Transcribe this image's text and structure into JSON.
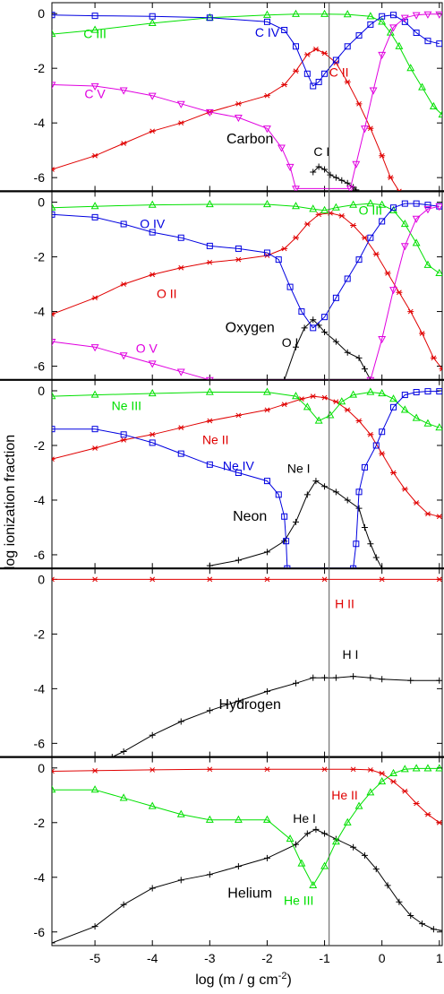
{
  "colors": {
    "I": "#000000",
    "II": "#e00000",
    "III": "#00e000",
    "IV": "#0000e0",
    "V": "#e000e0"
  },
  "xlabel_main": "log (m / g cm",
  "xlabel_sup": "-2",
  "xlabel_close": ")",
  "ylabel": "log   ionization fraction",
  "chart_data": [
    {
      "type": "line",
      "element": "Carbon",
      "xlim": [
        -5.75,
        1.05
      ],
      "ylim": [
        -6.5,
        0.4
      ],
      "xticks": [
        -5,
        -4,
        -3,
        -2,
        -1,
        0,
        1
      ],
      "yticks": [
        0,
        -2,
        -4,
        -6
      ],
      "vline_x": -0.92,
      "series": [
        {
          "name": "C I",
          "color_key": "I",
          "marker": "plus",
          "label_pos": [
            -1.05,
            -5.2
          ],
          "x": [
            -1.2,
            -1.1,
            -1.0,
            -0.9,
            -0.8,
            -0.7,
            -0.6,
            -0.5,
            -0.45
          ],
          "y": [
            -5.8,
            -5.6,
            -5.7,
            -5.9,
            -6.0,
            -6.1,
            -6.2,
            -6.35,
            -6.45
          ]
        },
        {
          "name": "C II",
          "color_key": "II",
          "marker": "star",
          "label_pos": [
            -0.75,
            -2.3
          ],
          "x": [
            -5.75,
            -5.0,
            -4.5,
            -4.0,
            -3.5,
            -3.0,
            -2.5,
            -2.0,
            -1.7,
            -1.5,
            -1.3,
            -1.15,
            -1.0,
            -0.8,
            -0.6,
            -0.4,
            -0.2,
            0.0,
            0.15,
            0.3
          ],
          "y": [
            -5.7,
            -5.2,
            -4.75,
            -4.3,
            -4.0,
            -3.6,
            -3.3,
            -3.0,
            -2.6,
            -2.1,
            -1.5,
            -1.3,
            -1.45,
            -1.8,
            -2.5,
            -3.3,
            -4.2,
            -5.2,
            -6.0,
            -6.5
          ]
        },
        {
          "name": "C III",
          "color_key": "III",
          "marker": "triangle",
          "label_pos": [
            -5.0,
            -0.9
          ],
          "x": [
            -5.75,
            -5.0,
            -4.0,
            -3.0,
            -2.0,
            -1.5,
            -1.0,
            -0.6,
            -0.2,
            0.0,
            0.15,
            0.3,
            0.5,
            0.7,
            0.9,
            1.05
          ],
          "y": [
            -0.75,
            -0.6,
            -0.35,
            -0.15,
            -0.05,
            -0.02,
            -0.02,
            -0.03,
            -0.1,
            -0.3,
            -0.7,
            -1.2,
            -2.0,
            -2.7,
            -3.4,
            -3.7
          ]
        },
        {
          "name": "C IV",
          "color_key": "IV",
          "marker": "square",
          "label_pos": [
            -2.0,
            -0.85
          ],
          "x": [
            -5.75,
            -5.0,
            -4.0,
            -3.0,
            -2.0,
            -1.7,
            -1.5,
            -1.3,
            -1.2,
            -1.1,
            -1.0,
            -0.8,
            -0.6,
            -0.4,
            -0.2,
            0.0,
            0.2,
            0.4,
            0.6,
            0.8,
            1.0
          ],
          "y": [
            -0.05,
            -0.08,
            -0.1,
            -0.15,
            -0.3,
            -0.6,
            -1.2,
            -2.2,
            -2.65,
            -2.5,
            -2.2,
            -1.7,
            -1.2,
            -0.8,
            -0.4,
            -0.1,
            -0.05,
            -0.3,
            -0.7,
            -1.0,
            -1.1
          ]
        },
        {
          "name": "C V",
          "color_key": "V",
          "marker": "triangle-down",
          "label_pos": [
            -5.0,
            -3.1
          ],
          "x": [
            -5.75,
            -5.0,
            -4.5,
            -4.0,
            -3.5,
            -3.0,
            -2.5,
            -2.0,
            -1.75,
            -1.6,
            -1.5,
            -0.55,
            -0.45,
            -0.3,
            -0.15,
            0.0,
            0.2,
            0.4,
            0.6,
            0.8,
            1.0
          ],
          "y": [
            -2.6,
            -2.65,
            -2.8,
            -3.0,
            -3.3,
            -3.6,
            -3.8,
            -4.2,
            -4.9,
            -5.6,
            -6.4,
            -6.4,
            -5.5,
            -4.2,
            -2.8,
            -1.5,
            -0.5,
            -0.15,
            -0.05,
            -0.02,
            -0.02
          ]
        }
      ]
    },
    {
      "type": "line",
      "element": "Oxygen",
      "xlim": [
        -5.75,
        1.05
      ],
      "ylim": [
        -6.5,
        0.4
      ],
      "xticks": [
        -5,
        -4,
        -3,
        -2,
        -1,
        0,
        1
      ],
      "yticks": [
        0,
        -2,
        -4,
        -6
      ],
      "vline_x": -0.92,
      "series": [
        {
          "name": "O I",
          "color_key": "I",
          "marker": "plus",
          "label_pos": [
            -1.6,
            -5.3
          ],
          "x": [
            -1.7,
            -1.5,
            -1.35,
            -1.2,
            -1.1,
            -1.0,
            -0.8,
            -0.6,
            -0.4,
            -0.3,
            -0.2
          ],
          "y": [
            -6.5,
            -5.3,
            -4.6,
            -4.3,
            -4.5,
            -4.75,
            -5.1,
            -5.5,
            -5.7,
            -6.1,
            -6.5
          ]
        },
        {
          "name": "O II",
          "color_key": "II",
          "marker": "star",
          "label_pos": [
            -3.75,
            -3.5
          ],
          "x": [
            -5.75,
            -5.0,
            -4.5,
            -4.0,
            -3.5,
            -3.0,
            -2.5,
            -2.0,
            -1.7,
            -1.5,
            -1.3,
            -1.1,
            -0.9,
            -0.7,
            -0.5,
            -0.3,
            -0.1,
            0.1,
            0.3,
            0.5,
            0.7,
            0.9,
            1.05
          ],
          "y": [
            -4.1,
            -3.5,
            -3.0,
            -2.65,
            -2.4,
            -2.2,
            -2.1,
            -1.95,
            -1.7,
            -1.3,
            -0.8,
            -0.45,
            -0.4,
            -0.5,
            -0.85,
            -1.3,
            -1.9,
            -2.6,
            -3.3,
            -4.0,
            -4.8,
            -5.7,
            -6.1
          ]
        },
        {
          "name": "O III",
          "color_key": "III",
          "marker": "triangle",
          "label_pos": [
            -0.2,
            -0.45
          ],
          "x": [
            -5.75,
            -5.0,
            -4.0,
            -3.0,
            -2.0,
            -1.5,
            -1.2,
            -1.0,
            -0.8,
            -0.5,
            -0.2,
            0.0,
            0.2,
            0.4,
            0.6,
            0.8,
            1.0
          ],
          "y": [
            -0.2,
            -0.15,
            -0.1,
            -0.08,
            -0.08,
            -0.15,
            -0.25,
            -0.3,
            -0.2,
            -0.1,
            -0.05,
            -0.1,
            -0.3,
            -0.8,
            -1.5,
            -2.3,
            -2.6
          ]
        },
        {
          "name": "O IV",
          "color_key": "IV",
          "marker": "square",
          "label_pos": [
            -4.0,
            -0.95
          ],
          "x": [
            -5.75,
            -5.0,
            -4.5,
            -4.0,
            -3.5,
            -3.0,
            -2.5,
            -2.0,
            -1.8,
            -1.6,
            -1.4,
            -1.2,
            -1.0,
            -0.8,
            -0.6,
            -0.4,
            -0.2,
            0.0,
            0.2,
            0.4,
            0.6,
            0.8,
            1.0
          ],
          "y": [
            -0.45,
            -0.55,
            -0.8,
            -1.1,
            -1.3,
            -1.6,
            -1.7,
            -1.85,
            -2.1,
            -3.1,
            -4.0,
            -4.6,
            -4.2,
            -3.5,
            -2.8,
            -2.1,
            -1.3,
            -0.7,
            -0.2,
            -0.05,
            -0.05,
            -0.1,
            -0.15
          ]
        },
        {
          "name": "O V",
          "color_key": "V",
          "marker": "triangle-down",
          "label_pos": [
            -4.1,
            -5.5
          ],
          "x": [
            -5.75,
            -5.0,
            -4.5,
            -4.0,
            -3.5,
            -3.0,
            -0.2,
            0.0,
            0.2,
            0.4,
            0.6,
            0.8,
            1.0
          ],
          "y": [
            -5.1,
            -5.3,
            -5.6,
            -5.9,
            -6.2,
            -6.5,
            -6.5,
            -5.0,
            -3.2,
            -1.6,
            -0.6,
            -0.25,
            -0.15
          ]
        }
      ]
    },
    {
      "type": "line",
      "element": "Neon",
      "xlim": [
        -5.75,
        1.05
      ],
      "ylim": [
        -6.5,
        0.4
      ],
      "xticks": [
        -5,
        -4,
        -3,
        -2,
        -1,
        0,
        1
      ],
      "yticks": [
        0,
        -2,
        -4,
        -6
      ],
      "vline_x": -0.92,
      "series": [
        {
          "name": "Ne I",
          "color_key": "I",
          "marker": "plus",
          "label_pos": [
            -1.45,
            -3.0
          ],
          "x": [
            -3.0,
            -2.5,
            -2.0,
            -1.7,
            -1.5,
            -1.3,
            -1.15,
            -1.0,
            -0.8,
            -0.6,
            -0.4,
            -0.3,
            -0.2,
            -0.1,
            0.0
          ],
          "y": [
            -6.4,
            -6.2,
            -5.9,
            -5.5,
            -4.8,
            -3.8,
            -3.3,
            -3.5,
            -3.7,
            -4.0,
            -4.3,
            -5.0,
            -5.6,
            -6.1,
            -6.5
          ]
        },
        {
          "name": "Ne II",
          "color_key": "II",
          "marker": "star",
          "label_pos": [
            -2.9,
            -1.95
          ],
          "x": [
            -5.75,
            -5.0,
            -4.5,
            -4.0,
            -3.5,
            -3.0,
            -2.5,
            -2.0,
            -1.7,
            -1.4,
            -1.2,
            -1.0,
            -0.8,
            -0.6,
            -0.4,
            -0.2,
            0.0,
            0.2,
            0.4,
            0.6,
            0.8,
            1.0
          ],
          "y": [
            -2.5,
            -2.1,
            -1.8,
            -1.6,
            -1.35,
            -1.1,
            -0.9,
            -0.7,
            -0.5,
            -0.3,
            -0.2,
            -0.25,
            -0.4,
            -0.7,
            -1.1,
            -1.6,
            -2.3,
            -3.0,
            -3.6,
            -4.1,
            -4.5,
            -4.6
          ]
        },
        {
          "name": "Ne III",
          "color_key": "III",
          "marker": "triangle",
          "label_pos": [
            -4.45,
            -0.7
          ],
          "x": [
            -5.75,
            -5.0,
            -4.0,
            -3.0,
            -2.0,
            -1.5,
            -1.3,
            -1.1,
            -0.9,
            -0.7,
            -0.5,
            -0.2,
            0.0,
            0.2,
            0.4,
            0.6,
            0.8,
            1.0
          ],
          "y": [
            -0.2,
            -0.15,
            -0.1,
            -0.05,
            -0.05,
            -0.2,
            -0.6,
            -1.1,
            -0.9,
            -0.4,
            -0.15,
            -0.05,
            -0.1,
            -0.3,
            -0.7,
            -1.0,
            -1.2,
            -1.35
          ]
        },
        {
          "name": "Ne IV",
          "color_key": "IV",
          "marker": "square",
          "label_pos": [
            -2.5,
            -2.9
          ],
          "x": [
            -5.75,
            -5.0,
            -4.5,
            -4.0,
            -3.5,
            -3.0,
            -2.5,
            -2.0,
            -1.8,
            -1.7,
            -1.67,
            -1.65,
            -0.5,
            -0.45,
            -0.4,
            -0.3,
            -0.1,
            0.0,
            0.2,
            0.4,
            0.6,
            0.8,
            1.0
          ],
          "y": [
            -1.4,
            -1.4,
            -1.6,
            -1.9,
            -2.3,
            -2.7,
            -3.0,
            -3.3,
            -3.8,
            -4.6,
            -5.5,
            -6.5,
            -6.5,
            -5.6,
            -3.7,
            -2.8,
            -2.0,
            -1.5,
            -0.6,
            -0.15,
            -0.05,
            -0.02,
            -0.02
          ]
        }
      ]
    },
    {
      "type": "line",
      "element": "Hydrogen",
      "xlim": [
        -5.75,
        1.05
      ],
      "ylim": [
        -6.5,
        0.4
      ],
      "xticks": [
        -5,
        -4,
        -3,
        -2,
        -1,
        0,
        1
      ],
      "yticks": [
        0,
        -2,
        -4,
        -6
      ],
      "vline_x": -0.92,
      "series": [
        {
          "name": "H I",
          "color_key": "I",
          "marker": "plus",
          "label_pos": [
            -0.55,
            -2.9
          ],
          "x": [
            -4.7,
            -4.5,
            -4.0,
            -3.5,
            -3.0,
            -2.5,
            -2.0,
            -1.5,
            -1.2,
            -1.0,
            -0.8,
            -0.5,
            -0.2,
            0.0,
            0.5,
            1.0
          ],
          "y": [
            -6.5,
            -6.3,
            -5.7,
            -5.2,
            -4.8,
            -4.45,
            -4.1,
            -3.8,
            -3.6,
            -3.6,
            -3.6,
            -3.55,
            -3.6,
            -3.65,
            -3.7,
            -3.7
          ]
        },
        {
          "name": "H II",
          "color_key": "II",
          "marker": "star",
          "label_pos": [
            -0.65,
            -1.05
          ],
          "x": [
            -5.75,
            -5.0,
            -4.0,
            -3.0,
            -2.0,
            -1.0,
            0.0,
            1.0
          ],
          "y": [
            0.0,
            0.0,
            0.0,
            0.0,
            0.0,
            0.0,
            0.0,
            0.0
          ]
        }
      ]
    },
    {
      "type": "line",
      "element": "Helium",
      "xlim": [
        -5.75,
        1.05
      ],
      "ylim": [
        -6.5,
        0.4
      ],
      "xticks": [
        -5,
        -4,
        -3,
        -2,
        -1,
        0,
        1
      ],
      "yticks": [
        0,
        -2,
        -4,
        -6
      ],
      "vline_x": -0.92,
      "series": [
        {
          "name": "He I",
          "color_key": "I",
          "marker": "plus",
          "label_pos": [
            -1.35,
            -2.0
          ],
          "x": [
            -5.75,
            -5.0,
            -4.5,
            -4.0,
            -3.5,
            -3.0,
            -2.5,
            -2.0,
            -1.5,
            -1.3,
            -1.15,
            -1.0,
            -0.8,
            -0.5,
            -0.3,
            -0.1,
            0.1,
            0.3,
            0.5,
            0.7,
            0.9,
            1.05
          ],
          "y": [
            -6.4,
            -5.8,
            -5.0,
            -4.4,
            -4.1,
            -3.9,
            -3.6,
            -3.3,
            -2.8,
            -2.4,
            -2.25,
            -2.4,
            -2.6,
            -2.9,
            -3.2,
            -3.7,
            -4.3,
            -4.9,
            -5.4,
            -5.7,
            -5.9,
            -5.95
          ]
        },
        {
          "name": "He II",
          "color_key": "II",
          "marker": "star",
          "label_pos": [
            -0.65,
            -1.15
          ],
          "x": [
            -5.75,
            -5.0,
            -4.0,
            -3.0,
            -2.0,
            -1.0,
            -0.5,
            -0.2,
            0.0,
            0.2,
            0.4,
            0.6,
            0.8,
            1.0
          ],
          "y": [
            -0.12,
            -0.1,
            -0.07,
            -0.05,
            -0.05,
            -0.05,
            -0.05,
            -0.07,
            -0.2,
            -0.5,
            -0.85,
            -1.3,
            -1.7,
            -2.0
          ]
        },
        {
          "name": "He III",
          "color_key": "III",
          "marker": "triangle",
          "label_pos": [
            -1.45,
            -5.0
          ],
          "x": [
            -5.75,
            -5.0,
            -4.5,
            -4.0,
            -3.5,
            -3.0,
            -2.5,
            -2.0,
            -1.6,
            -1.4,
            -1.2,
            -1.0,
            -0.8,
            -0.6,
            -0.4,
            -0.2,
            0.0,
            0.2,
            0.4,
            0.6,
            0.8,
            1.0
          ],
          "y": [
            -0.8,
            -0.8,
            -1.1,
            -1.4,
            -1.7,
            -1.9,
            -1.9,
            -1.9,
            -2.6,
            -3.5,
            -4.3,
            -3.6,
            -2.7,
            -2.0,
            -1.4,
            -0.9,
            -0.5,
            -0.2,
            -0.05,
            -0.02,
            -0.02,
            -0.02
          ]
        }
      ]
    }
  ]
}
